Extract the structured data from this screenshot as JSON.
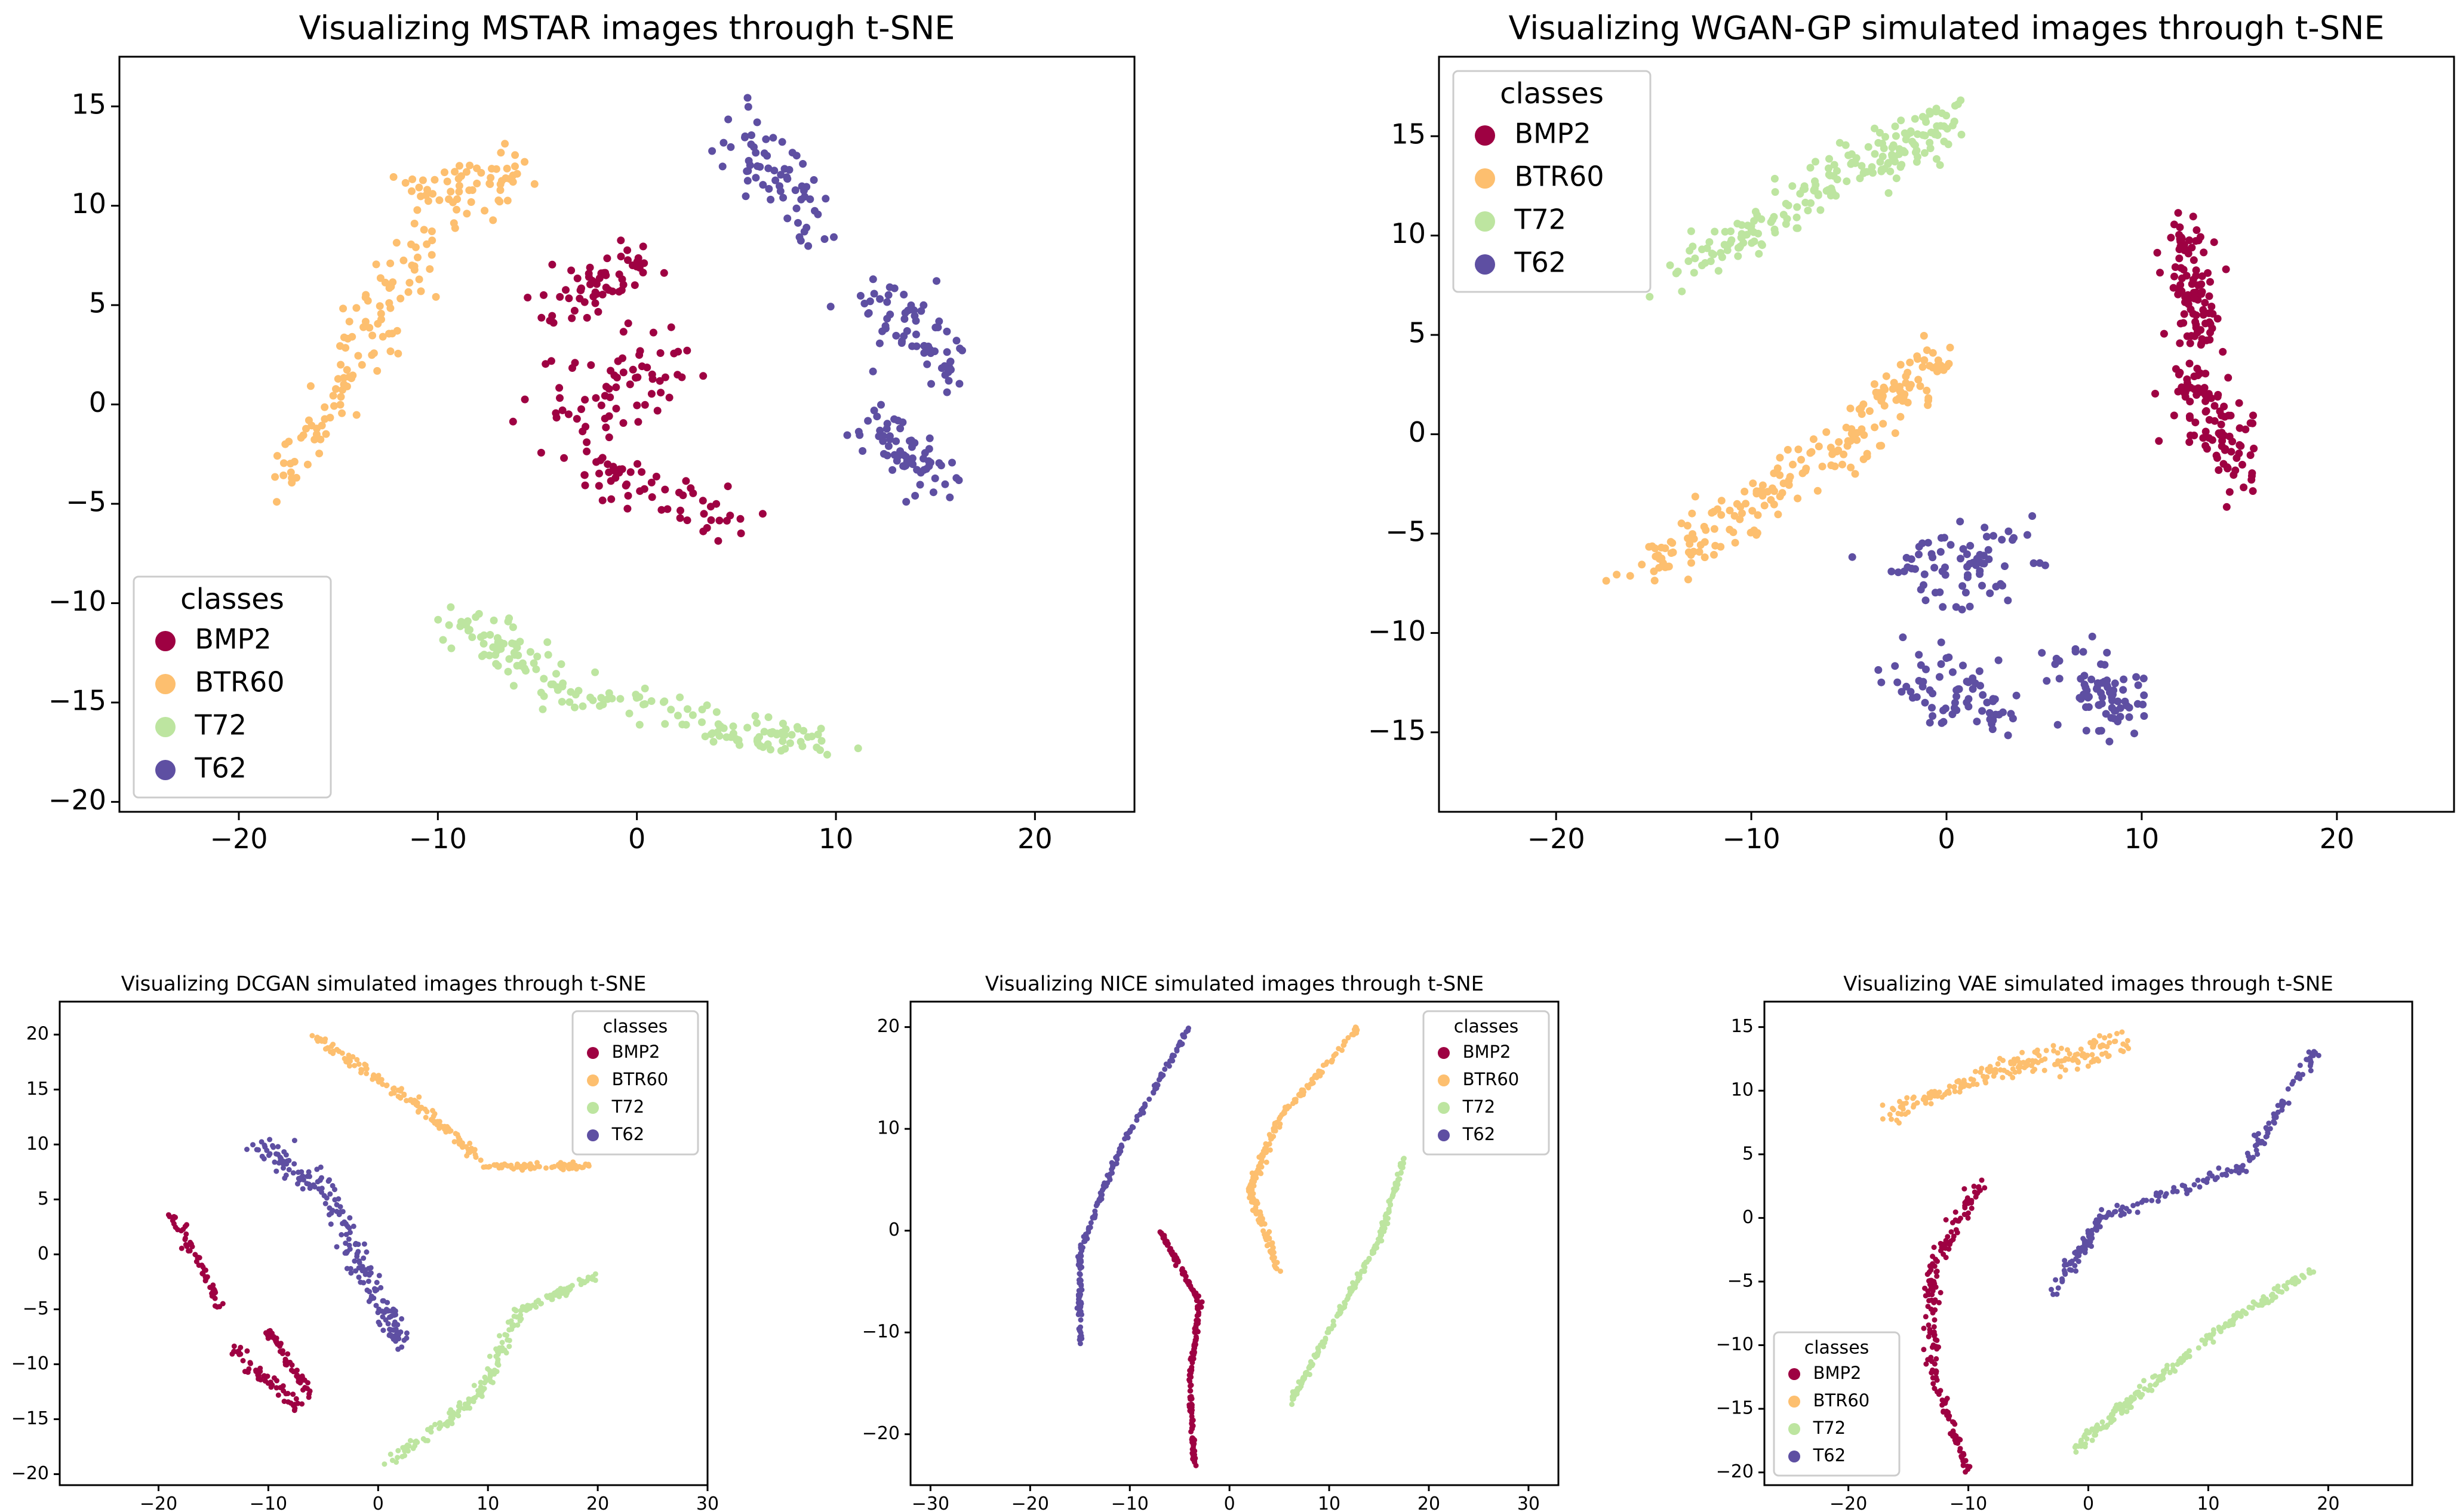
{
  "chart_data": [
    {
      "type": "scatter",
      "title": "Visualizing MSTAR images through t-SNE",
      "xlim": [
        -26,
        25
      ],
      "ylim": [
        -20.5,
        17.5
      ],
      "xticks": [
        -20,
        -10,
        0,
        10,
        20
      ],
      "yticks": [
        -20,
        -15,
        -10,
        -5,
        0,
        5,
        10,
        15
      ],
      "legend": {
        "title": "classes",
        "placement": "lower-left"
      },
      "grid": false,
      "series": [
        {
          "name": "BMP2",
          "color": "#9e0142",
          "n": 190,
          "segments": [
            {
              "x0": -4,
              "y0": 5,
              "x1": 0,
              "y1": 7,
              "spread": [
                1.4,
                1.2
              ]
            },
            {
              "x0": -4,
              "y0": 0,
              "x1": 2,
              "y1": 2,
              "spread": [
                1.5,
                1.8
              ]
            },
            {
              "x0": -3,
              "y0": -3,
              "x1": 5,
              "y1": -6,
              "spread": [
                1.5,
                1.2
              ]
            }
          ]
        },
        {
          "name": "BTR60",
          "color": "#fdbf6f",
          "n": 170,
          "segments": [
            {
              "x0": -18,
              "y0": -4,
              "x1": -13,
              "y1": 3,
              "spread": [
                0.8,
                1.0
              ]
            },
            {
              "x0": -15,
              "y0": 2,
              "x1": -9,
              "y1": 11,
              "spread": [
                1.2,
                1.3
              ]
            },
            {
              "x0": -11,
              "y0": 10,
              "x1": -6,
              "y1": 12,
              "spread": [
                1.3,
                1.4
              ]
            }
          ]
        },
        {
          "name": "T72",
          "color": "#bde5a0",
          "n": 170,
          "segments": [
            {
              "x0": -9,
              "y0": -11,
              "x1": -5,
              "y1": -13,
              "spread": [
                1.2,
                1.2
              ]
            },
            {
              "x0": -5,
              "y0": -14,
              "x1": 4,
              "y1": -16,
              "spread": [
                1.5,
                0.9
              ]
            },
            {
              "x0": 4,
              "y0": -16.5,
              "x1": 10,
              "y1": -17,
              "spread": [
                1.2,
                0.6
              ]
            }
          ]
        },
        {
          "name": "T62",
          "color": "#5e4fa2",
          "n": 200,
          "segments": [
            {
              "x0": 5,
              "y0": 14,
              "x1": 9,
              "y1": 9,
              "spread": [
                1.3,
                1.5
              ]
            },
            {
              "x0": 12,
              "y0": 5,
              "x1": 16,
              "y1": 2,
              "spread": [
                1.5,
                1.5
              ]
            },
            {
              "x0": 11,
              "y0": 0,
              "x1": 15,
              "y1": -4,
              "spread": [
                1.6,
                1.4
              ]
            }
          ]
        }
      ]
    },
    {
      "type": "scatter",
      "title": "Visualizing WGAN-GP simulated images through t-SNE",
      "xlim": [
        -26,
        26
      ],
      "ylim": [
        -19,
        19
      ],
      "xticks": [
        -20,
        -10,
        0,
        10,
        20
      ],
      "yticks": [
        -15,
        -10,
        -5,
        0,
        5,
        10,
        15
      ],
      "legend": {
        "title": "classes",
        "placement": "upper-left"
      },
      "grid": false,
      "series": [
        {
          "name": "BMP2",
          "color": "#9e0142",
          "n": 200,
          "segments": [
            {
              "x0": 12,
              "y0": 10,
              "x1": 13,
              "y1": 5,
              "spread": [
                0.9,
                1.5
              ]
            },
            {
              "x0": 12,
              "y0": 3,
              "x1": 15,
              "y1": -2,
              "spread": [
                1.2,
                1.6
              ]
            }
          ]
        },
        {
          "name": "BTR60",
          "color": "#fdbf6f",
          "n": 200,
          "segments": [
            {
              "x0": -16,
              "y0": -7,
              "x1": -10,
              "y1": -4,
              "spread": [
                1.2,
                1.0
              ]
            },
            {
              "x0": -10,
              "y0": -3,
              "x1": -4,
              "y1": 0,
              "spread": [
                1.3,
                1.0
              ]
            },
            {
              "x0": -4,
              "y0": 1,
              "x1": 0,
              "y1": 4,
              "spread": [
                1.2,
                1.0
              ]
            }
          ]
        },
        {
          "name": "T72",
          "color": "#bde5a0",
          "n": 200,
          "segments": [
            {
              "x0": -14,
              "y0": 8,
              "x1": -8,
              "y1": 11,
              "spread": [
                1.2,
                1.0
              ]
            },
            {
              "x0": -8,
              "y0": 12,
              "x1": -3,
              "y1": 14,
              "spread": [
                1.3,
                1.0
              ]
            },
            {
              "x0": -3,
              "y0": 14,
              "x1": 0,
              "y1": 16,
              "spread": [
                1.2,
                1.0
              ]
            }
          ]
        },
        {
          "name": "T62",
          "color": "#5e4fa2",
          "n": 220,
          "segments": [
            {
              "x0": -2,
              "y0": -7,
              "x1": 4,
              "y1": -6,
              "spread": [
                1.8,
                1.8
              ]
            },
            {
              "x0": -2,
              "y0": -12,
              "x1": 3,
              "y1": -14,
              "spread": [
                2.0,
                1.6
              ]
            },
            {
              "x0": 7,
              "y0": -12,
              "x1": 9,
              "y1": -14,
              "spread": [
                1.5,
                1.3
              ]
            }
          ]
        }
      ]
    },
    {
      "type": "scatter",
      "title": "Visualizing DCGAN simulated images through t-SNE",
      "xlim": [
        -29,
        30
      ],
      "ylim": [
        -21,
        23
      ],
      "xticks": [
        -20,
        -10,
        0,
        10,
        20,
        30
      ],
      "yticks": [
        -20,
        -15,
        -10,
        -5,
        0,
        5,
        10,
        15,
        20
      ],
      "legend": {
        "title": "classes",
        "placement": "upper-right"
      },
      "grid": false,
      "series": [
        {
          "name": "BMP2",
          "color": "#9e0142",
          "n": 170,
          "segments": [
            {
              "x0": -19,
              "y0": 4,
              "x1": -14,
              "y1": -5,
              "spread": [
                0.4,
                0.4
              ]
            },
            {
              "x0": -13,
              "y0": -9,
              "x1": -7,
              "y1": -14,
              "spread": [
                0.5,
                0.5
              ]
            },
            {
              "x0": -10,
              "y0": -7,
              "x1": -6,
              "y1": -13,
              "spread": [
                0.3,
                0.3
              ]
            }
          ]
        },
        {
          "name": "BTR60",
          "color": "#fdbf6f",
          "n": 200,
          "segments": [
            {
              "x0": -6,
              "y0": 20,
              "x1": 3,
              "y1": 14,
              "spread": [
                0.4,
                0.4
              ]
            },
            {
              "x0": 3,
              "y0": 14,
              "x1": 10,
              "y1": 8,
              "spread": [
                0.5,
                0.4
              ]
            },
            {
              "x0": 10,
              "y0": 8,
              "x1": 19,
              "y1": 8,
              "spread": [
                0.5,
                0.3
              ]
            }
          ]
        },
        {
          "name": "T72",
          "color": "#bde5a0",
          "n": 200,
          "segments": [
            {
              "x0": 1,
              "y0": -19,
              "x1": 9,
              "y1": -13,
              "spread": [
                0.5,
                0.4
              ]
            },
            {
              "x0": 9,
              "y0": -13,
              "x1": 13,
              "y1": -5,
              "spread": [
                0.5,
                0.4
              ]
            },
            {
              "x0": 13,
              "y0": -5,
              "x1": 20,
              "y1": -2,
              "spread": [
                0.5,
                0.3
              ]
            }
          ]
        },
        {
          "name": "T62",
          "color": "#5e4fa2",
          "n": 200,
          "segments": [
            {
              "x0": -11,
              "y0": 10,
              "x1": -5,
              "y1": 6,
              "spread": [
                1.0,
                1.0
              ]
            },
            {
              "x0": -5,
              "y0": 6,
              "x1": -1,
              "y1": -2,
              "spread": [
                1.0,
                1.0
              ]
            },
            {
              "x0": -1,
              "y0": -2,
              "x1": 2,
              "y1": -8,
              "spread": [
                0.8,
                1.0
              ]
            }
          ]
        }
      ]
    },
    {
      "type": "scatter",
      "title": "Visualizing NICE simulated images through t-SNE",
      "xlim": [
        -32,
        33
      ],
      "ylim": [
        -25,
        22.5
      ],
      "xticks": [
        -30,
        -20,
        -10,
        0,
        10,
        20,
        30
      ],
      "yticks": [
        -20,
        -10,
        0,
        10,
        20
      ],
      "legend": {
        "title": "classes",
        "placement": "upper-right"
      },
      "grid": false,
      "series": [
        {
          "name": "BMP2",
          "color": "#9e0142",
          "n": 200,
          "segments": [
            {
              "x0": -7,
              "y0": 0,
              "x1": -3,
              "y1": -7,
              "spread": [
                0.15,
                0.15
              ]
            },
            {
              "x0": -3,
              "y0": -7,
              "x1": -4,
              "y1": -15,
              "spread": [
                0.15,
                0.15
              ]
            },
            {
              "x0": -4,
              "y0": -15,
              "x1": -3.5,
              "y1": -23,
              "spread": [
                0.15,
                0.15
              ]
            }
          ]
        },
        {
          "name": "BTR60",
          "color": "#fdbf6f",
          "n": 200,
          "segments": [
            {
              "x0": 5,
              "y0": -4,
              "x1": 2,
              "y1": 4,
              "spread": [
                0.3,
                0.3
              ]
            },
            {
              "x0": 2,
              "y0": 4,
              "x1": 5,
              "y1": 11,
              "spread": [
                0.3,
                0.3
              ]
            },
            {
              "x0": 5,
              "y0": 11,
              "x1": 13,
              "y1": 20,
              "spread": [
                0.2,
                0.2
              ]
            }
          ]
        },
        {
          "name": "T72",
          "color": "#bde5a0",
          "n": 200,
          "segments": [
            {
              "x0": 6,
              "y0": -17,
              "x1": 10,
              "y1": -10,
              "spread": [
                0.2,
                0.2
              ]
            },
            {
              "x0": 10,
              "y0": -10,
              "x1": 15,
              "y1": -1,
              "spread": [
                0.2,
                0.2
              ]
            },
            {
              "x0": 15,
              "y0": -1,
              "x1": 17.5,
              "y1": 7,
              "spread": [
                0.2,
                0.2
              ]
            }
          ]
        },
        {
          "name": "T62",
          "color": "#5e4fa2",
          "n": 200,
          "segments": [
            {
              "x0": -15,
              "y0": -11,
              "x1": -15,
              "y1": -2,
              "spread": [
                0.2,
                0.2
              ]
            },
            {
              "x0": -15,
              "y0": -2,
              "x1": -11,
              "y1": 8,
              "spread": [
                0.2,
                0.2
              ]
            },
            {
              "x0": -11,
              "y0": 8,
              "x1": -4,
              "y1": 20,
              "spread": [
                0.2,
                0.2
              ]
            }
          ]
        }
      ]
    },
    {
      "type": "scatter",
      "title": "Visualizing VAE simulated images through t-SNE",
      "xlim": [
        -27,
        27
      ],
      "ylim": [
        -21,
        17
      ],
      "xticks": [
        -20,
        -10,
        0,
        10,
        20
      ],
      "yticks": [
        -20,
        -15,
        -10,
        -5,
        0,
        5,
        10,
        15
      ],
      "legend": {
        "title": "classes",
        "placement": "lower-left"
      },
      "grid": false,
      "series": [
        {
          "name": "BMP2",
          "color": "#9e0142",
          "n": 180,
          "segments": [
            {
              "x0": -9,
              "y0": 3,
              "x1": -13,
              "y1": -4,
              "spread": [
                0.6,
                0.5
              ]
            },
            {
              "x0": -13,
              "y0": -4,
              "x1": -13,
              "y1": -12,
              "spread": [
                0.5,
                0.5
              ]
            },
            {
              "x0": -13,
              "y0": -12,
              "x1": -10,
              "y1": -20,
              "spread": [
                0.3,
                0.3
              ]
            }
          ]
        },
        {
          "name": "BTR60",
          "color": "#fdbf6f",
          "n": 200,
          "segments": [
            {
              "x0": -17,
              "y0": 8,
              "x1": -9,
              "y1": 11,
              "spread": [
                0.5,
                0.5
              ]
            },
            {
              "x0": -9,
              "y0": 11,
              "x1": -3,
              "y1": 13,
              "spread": [
                0.8,
                0.7
              ]
            },
            {
              "x0": -3,
              "y0": 12,
              "x1": 3,
              "y1": 14,
              "spread": [
                0.9,
                1.0
              ]
            }
          ]
        },
        {
          "name": "T72",
          "color": "#bde5a0",
          "n": 200,
          "segments": [
            {
              "x0": -1,
              "y0": -18,
              "x1": 4,
              "y1": -14,
              "spread": [
                0.4,
                0.4
              ]
            },
            {
              "x0": 4,
              "y0": -14,
              "x1": 12,
              "y1": -8,
              "spread": [
                0.4,
                0.4
              ]
            },
            {
              "x0": 12,
              "y0": -8,
              "x1": 19,
              "y1": -4,
              "spread": [
                0.4,
                0.3
              ]
            }
          ]
        },
        {
          "name": "T62",
          "color": "#5e4fa2",
          "n": 200,
          "segments": [
            {
              "x0": -3,
              "y0": -6,
              "x1": 1,
              "y1": 0,
              "spread": [
                0.4,
                0.5
              ]
            },
            {
              "x0": 1,
              "y0": 0,
              "x1": 13,
              "y1": 4,
              "spread": [
                0.5,
                0.4
              ]
            },
            {
              "x0": 13,
              "y0": 4,
              "x1": 19,
              "y1": 13,
              "spread": [
                0.4,
                0.4
              ]
            }
          ]
        }
      ]
    }
  ]
}
